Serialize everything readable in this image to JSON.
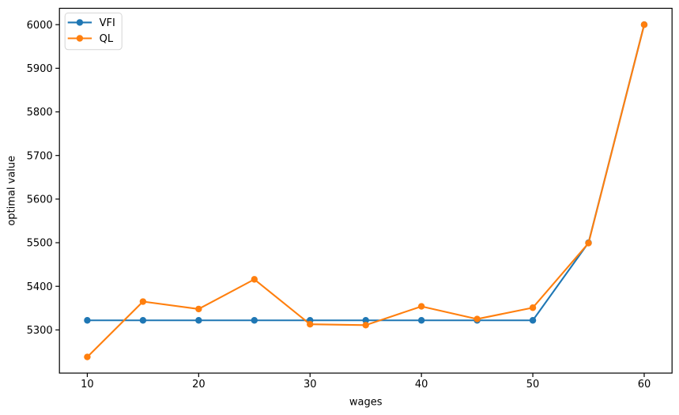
{
  "figure": {
    "kind": "matplotlib-line-chart",
    "background": "#ffffff"
  },
  "chart_data": {
    "type": "line",
    "title": "",
    "xlabel": "wages",
    "ylabel": "optimal value",
    "x": [
      10,
      15,
      20,
      25,
      30,
      35,
      40,
      45,
      50,
      55,
      60
    ],
    "series": [
      {
        "name": "VFI",
        "color": "#1f77b4",
        "marker": "o",
        "values": [
          5322,
          5322,
          5322,
          5322,
          5322,
          5322,
          5322,
          5322,
          5322,
          5500,
          6000
        ]
      },
      {
        "name": "QL",
        "color": "#ff7f0e",
        "marker": "o",
        "values": [
          5238,
          5365,
          5348,
          5416,
          5313,
          5311,
          5354,
          5325,
          5351,
          5499,
          6000
        ]
      }
    ],
    "xlim": [
      7.5,
      62.5
    ],
    "ylim": [
      5201,
      6037.5
    ],
    "xticks": [
      10,
      20,
      30,
      40,
      50,
      60
    ],
    "yticks": [
      5300,
      5400,
      5500,
      5600,
      5700,
      5800,
      5900,
      6000
    ],
    "grid": false,
    "legend": {
      "position": "upper left",
      "entries": [
        "VFI",
        "QL"
      ]
    }
  }
}
